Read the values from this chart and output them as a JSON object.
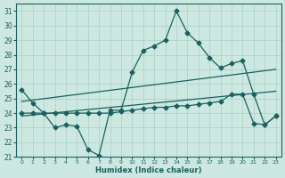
{
  "xlabel": "Humidex (Indice chaleur)",
  "bg_color": "#cce8e0",
  "grid_color": "#aad0c8",
  "line_color": "#1a6060",
  "xlim": [
    -0.5,
    23.5
  ],
  "ylim": [
    21,
    31.5
  ],
  "xticks": [
    0,
    1,
    2,
    3,
    4,
    5,
    6,
    7,
    8,
    9,
    10,
    11,
    12,
    13,
    14,
    15,
    16,
    17,
    18,
    19,
    20,
    21,
    22,
    23
  ],
  "yticks": [
    21,
    22,
    23,
    24,
    25,
    26,
    27,
    28,
    29,
    30,
    31
  ],
  "line1_x": [
    0,
    1,
    2,
    3,
    4,
    5,
    6,
    7,
    8,
    9,
    10,
    11,
    12,
    13,
    14,
    15,
    16,
    17,
    18,
    19,
    20,
    21,
    22,
    23
  ],
  "line1_y": [
    25.6,
    24.7,
    24.0,
    23.0,
    23.2,
    23.1,
    21.5,
    21.1,
    24.2,
    24.2,
    26.8,
    28.3,
    28.6,
    29.0,
    31.0,
    29.5,
    28.8,
    27.8,
    27.1,
    27.4,
    27.6,
    25.3,
    23.2,
    23.8
  ],
  "line2_x": [
    0,
    23
  ],
  "line2_y": [
    24.8,
    27.0
  ],
  "line3_x": [
    0,
    23
  ],
  "line3_y": [
    23.8,
    25.5
  ],
  "line4_x": [
    0,
    1,
    2,
    3,
    4,
    5,
    6,
    7,
    8,
    9,
    10,
    11,
    12,
    13,
    14,
    15,
    16,
    17,
    18,
    19,
    20,
    21,
    22,
    23
  ],
  "line4_y": [
    24.0,
    24.0,
    24.0,
    24.0,
    24.0,
    24.0,
    24.0,
    24.0,
    24.0,
    24.1,
    24.2,
    24.3,
    24.4,
    24.4,
    24.5,
    24.5,
    24.6,
    24.7,
    24.8,
    25.3,
    25.3,
    23.3,
    23.2,
    23.8
  ],
  "markersize": 2.5,
  "linewidth": 0.9
}
